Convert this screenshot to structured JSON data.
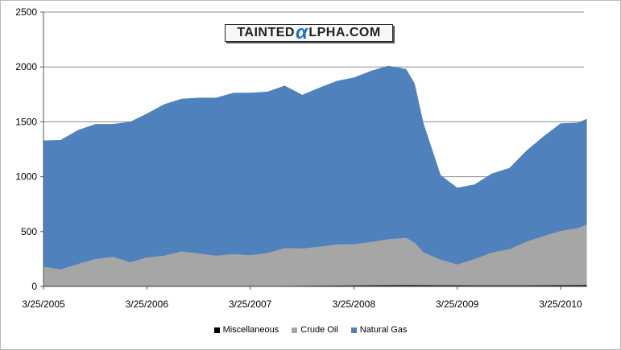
{
  "chart_data": {
    "type": "area",
    "stacked": true,
    "title": "",
    "xlabel": "",
    "ylabel": "",
    "ylim": [
      0,
      2500
    ],
    "yticks": [
      "0",
      "500",
      "1000",
      "1500",
      "2000",
      "2500"
    ],
    "xticks": [
      "3/25/2005",
      "3/25/2006",
      "3/25/2007",
      "3/25/2008",
      "3/25/2009",
      "3/25/2010"
    ],
    "grid": "horizontal",
    "legend_position": "bottom",
    "x": [
      "2005-03-25",
      "2005-05-25",
      "2005-07-25",
      "2005-09-25",
      "2005-11-25",
      "2006-01-25",
      "2006-03-25",
      "2006-05-25",
      "2006-07-25",
      "2006-09-25",
      "2006-11-25",
      "2007-01-25",
      "2007-03-25",
      "2007-05-25",
      "2007-07-25",
      "2007-09-25",
      "2007-11-25",
      "2008-01-25",
      "2008-03-25",
      "2008-05-25",
      "2008-07-25",
      "2008-09-25",
      "2008-10-25",
      "2008-11-25",
      "2009-01-25",
      "2009-03-25",
      "2009-05-25",
      "2009-07-25",
      "2009-09-25",
      "2009-11-25",
      "2010-01-25",
      "2010-03-25",
      "2010-05-25",
      "2010-06-25"
    ],
    "series": [
      {
        "name": "Miscellaneous",
        "color": "#000000",
        "values": [
          3,
          3,
          3,
          3,
          3,
          3,
          3,
          3,
          3,
          3,
          3,
          3,
          3,
          3,
          3,
          4,
          5,
          6,
          7,
          8,
          9,
          10,
          10,
          9,
          8,
          8,
          7,
          7,
          7,
          7,
          8,
          9,
          10,
          10
        ]
      },
      {
        "name": "Crude Oil",
        "color": "#a6a6a6",
        "values": [
          175,
          150,
          200,
          245,
          265,
          215,
          260,
          275,
          315,
          295,
          275,
          290,
          280,
          300,
          345,
          340,
          355,
          375,
          375,
          395,
          420,
          430,
          390,
          300,
          235,
          190,
          240,
          300,
          330,
          400,
          450,
          495,
          520,
          550
        ]
      },
      {
        "name": "Natural Gas",
        "color": "#4f81bd",
        "values": [
          1150,
          1180,
          1220,
          1230,
          1210,
          1280,
          1310,
          1380,
          1390,
          1420,
          1440,
          1470,
          1480,
          1470,
          1480,
          1400,
          1450,
          1490,
          1520,
          1560,
          1580,
          1540,
          1450,
          1180,
          770,
          700,
          680,
          720,
          740,
          830,
          910,
          980,
          960,
          965
        ]
      }
    ]
  },
  "legend": {
    "items": [
      {
        "label": "Miscellaneous",
        "color": "#000000"
      },
      {
        "label": "Crude Oil",
        "color": "#a6a6a6"
      },
      {
        "label": "Natural Gas",
        "color": "#4f81bd"
      }
    ]
  },
  "watermark": {
    "prefix": "TAINTED",
    "alpha": "α",
    "suffix": "LPHA.COM"
  }
}
